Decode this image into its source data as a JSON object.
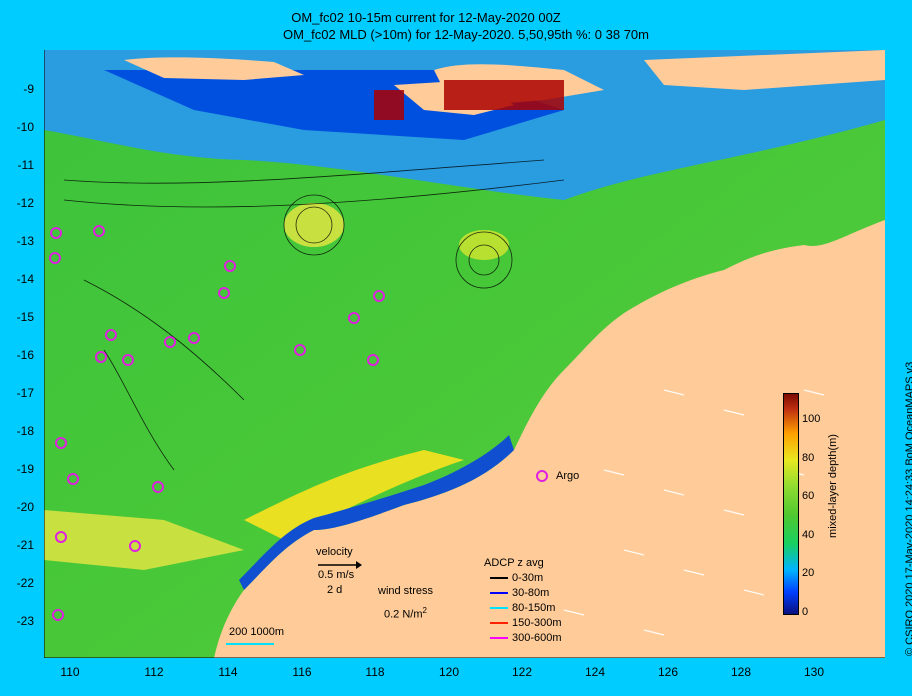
{
  "title_line1": "OM_fc02 10-15m current for 12-May-2020 00Z",
  "title_line2": "OM_fc02 MLD (>10m) for 12-May-2020. 5,50,95th %: 0  38  70m",
  "y_ticks": [
    "-9",
    "-10",
    "-11",
    "-12",
    "-13",
    "-14",
    "-15",
    "-16",
    "-17",
    "-18",
    "-19",
    "-20",
    "-21",
    "-22",
    "-23"
  ],
  "x_ticks": [
    "110",
    "112",
    "114",
    "116",
    "118",
    "120",
    "122",
    "124",
    "126",
    "128",
    "130"
  ],
  "colorbar": {
    "label": "mixed-layer depth(m)",
    "ticks": [
      "0",
      "20",
      "40",
      "60",
      "80",
      "100"
    ]
  },
  "argo_label": "Argo",
  "velocity": {
    "title": "velocity",
    "speed": "0.5 m/s",
    "days": "2 d"
  },
  "wind": {
    "title": "wind stress",
    "value": "0.2 N/m",
    "exp": "2"
  },
  "adcp": {
    "title": "ADCP z avg",
    "rows": [
      {
        "label": "0-30m",
        "color": "#000000"
      },
      {
        "label": "30-80m",
        "color": "#0000ff"
      },
      {
        "label": "80-150m",
        "color": "#00e0ff"
      },
      {
        "label": "150-300m",
        "color": "#ff2000"
      },
      {
        "label": "300-600m",
        "color": "#ff00ff"
      }
    ]
  },
  "scale_label": "200  1000m",
  "credit": "© CSIRO 2020   17-May-2020 14:24:33 BoM OceanMAPS v3"
}
